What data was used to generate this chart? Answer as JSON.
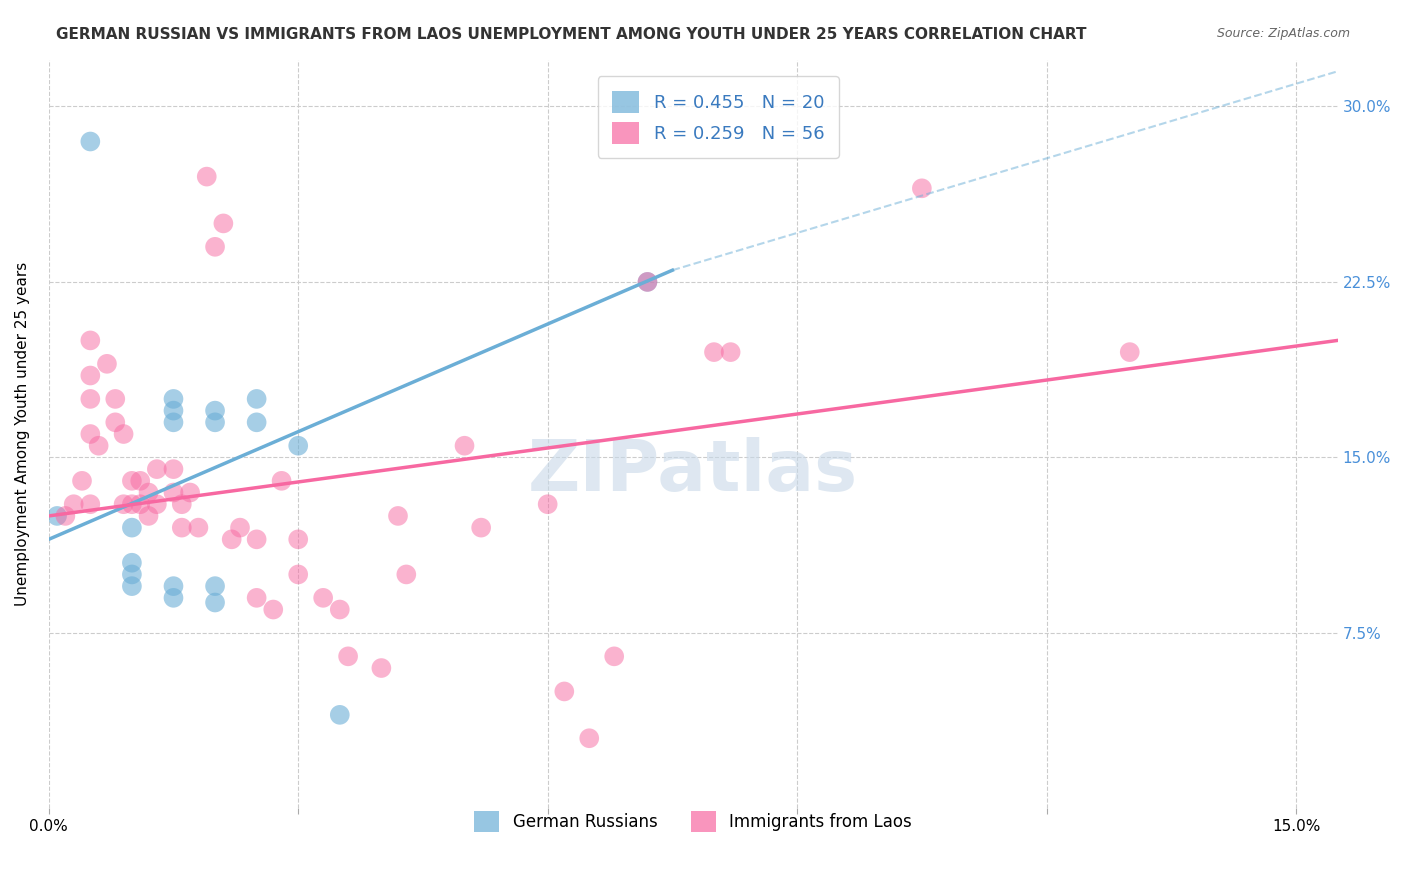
{
  "title": "GERMAN RUSSIAN VS IMMIGRANTS FROM LAOS UNEMPLOYMENT AMONG YOUTH UNDER 25 YEARS CORRELATION CHART",
  "source": "Source: ZipAtlas.com",
  "ylabel": "Unemployment Among Youth under 25 years",
  "x_ticks": [
    0.0,
    0.03,
    0.06,
    0.09,
    0.12,
    0.15
  ],
  "x_tick_labels": [
    "0.0%",
    "",
    "",
    "",
    "",
    "15.0%"
  ],
  "y_ticks": [
    0.075,
    0.15,
    0.225,
    0.3
  ],
  "y_tick_labels": [
    "7.5%",
    "15.0%",
    "22.5%",
    "30.0%"
  ],
  "legend_entries": [
    {
      "label": "R = 0.455   N = 20",
      "color": "#6baed6"
    },
    {
      "label": "R = 0.259   N = 56",
      "color": "#f768a1"
    }
  ],
  "legend_labels_bottom": [
    "German Russians",
    "Immigrants from Laos"
  ],
  "blue_color": "#6baed6",
  "pink_color": "#f768a1",
  "watermark": "ZIPatlas",
  "blue_points": [
    [
      0.005,
      0.285
    ],
    [
      0.01,
      0.12
    ],
    [
      0.01,
      0.105
    ],
    [
      0.01,
      0.1
    ],
    [
      0.01,
      0.095
    ],
    [
      0.015,
      0.175
    ],
    [
      0.015,
      0.17
    ],
    [
      0.015,
      0.165
    ],
    [
      0.015,
      0.095
    ],
    [
      0.015,
      0.09
    ],
    [
      0.02,
      0.17
    ],
    [
      0.02,
      0.165
    ],
    [
      0.02,
      0.095
    ],
    [
      0.02,
      0.088
    ],
    [
      0.025,
      0.175
    ],
    [
      0.025,
      0.165
    ],
    [
      0.03,
      0.155
    ],
    [
      0.035,
      0.04
    ],
    [
      0.072,
      0.225
    ],
    [
      0.001,
      0.125
    ]
  ],
  "pink_points": [
    [
      0.002,
      0.125
    ],
    [
      0.003,
      0.13
    ],
    [
      0.004,
      0.14
    ],
    [
      0.005,
      0.2
    ],
    [
      0.005,
      0.185
    ],
    [
      0.005,
      0.175
    ],
    [
      0.005,
      0.16
    ],
    [
      0.005,
      0.13
    ],
    [
      0.006,
      0.155
    ],
    [
      0.007,
      0.19
    ],
    [
      0.008,
      0.175
    ],
    [
      0.008,
      0.165
    ],
    [
      0.009,
      0.16
    ],
    [
      0.009,
      0.13
    ],
    [
      0.01,
      0.14
    ],
    [
      0.01,
      0.13
    ],
    [
      0.011,
      0.14
    ],
    [
      0.011,
      0.13
    ],
    [
      0.012,
      0.135
    ],
    [
      0.012,
      0.125
    ],
    [
      0.013,
      0.145
    ],
    [
      0.013,
      0.13
    ],
    [
      0.015,
      0.145
    ],
    [
      0.015,
      0.135
    ],
    [
      0.016,
      0.13
    ],
    [
      0.016,
      0.12
    ],
    [
      0.017,
      0.135
    ],
    [
      0.018,
      0.12
    ],
    [
      0.019,
      0.27
    ],
    [
      0.02,
      0.24
    ],
    [
      0.021,
      0.25
    ],
    [
      0.022,
      0.115
    ],
    [
      0.023,
      0.12
    ],
    [
      0.025,
      0.115
    ],
    [
      0.025,
      0.09
    ],
    [
      0.027,
      0.085
    ],
    [
      0.028,
      0.14
    ],
    [
      0.03,
      0.115
    ],
    [
      0.03,
      0.1
    ],
    [
      0.033,
      0.09
    ],
    [
      0.035,
      0.085
    ],
    [
      0.036,
      0.065
    ],
    [
      0.04,
      0.06
    ],
    [
      0.042,
      0.125
    ],
    [
      0.043,
      0.1
    ],
    [
      0.05,
      0.155
    ],
    [
      0.052,
      0.12
    ],
    [
      0.06,
      0.13
    ],
    [
      0.062,
      0.05
    ],
    [
      0.065,
      0.03
    ],
    [
      0.068,
      0.065
    ],
    [
      0.072,
      0.225
    ],
    [
      0.08,
      0.195
    ],
    [
      0.082,
      0.195
    ],
    [
      0.105,
      0.265
    ],
    [
      0.13,
      0.195
    ]
  ],
  "blue_line": {
    "x": [
      0.0,
      0.075
    ],
    "y": [
      0.115,
      0.23
    ]
  },
  "blue_dashed": {
    "x": [
      0.075,
      0.155
    ],
    "y": [
      0.23,
      0.315
    ]
  },
  "pink_line": {
    "x": [
      0.0,
      0.155
    ],
    "y": [
      0.125,
      0.2
    ]
  },
  "xlim": [
    0.0,
    0.155
  ],
  "ylim": [
    0.0,
    0.32
  ],
  "background_color": "#ffffff",
  "grid_color": "#cccccc",
  "title_fontsize": 11,
  "source_fontsize": 9
}
